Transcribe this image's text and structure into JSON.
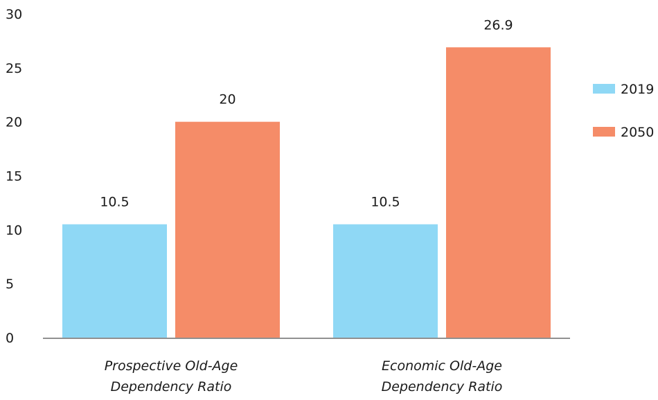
{
  "chart_data": {
    "type": "bar",
    "categories": [
      [
        "Prospective Old-Age",
        "Dependency Ratio"
      ],
      [
        "Economic Old-Age",
        "Dependency Ratio"
      ]
    ],
    "series": [
      {
        "name": "2019",
        "values": [
          10.5,
          10.5
        ],
        "color": "#8fd8f5"
      },
      {
        "name": "2050",
        "values": [
          20,
          26.9
        ],
        "color": "#f58c68"
      }
    ],
    "value_labels": [
      [
        "10.5",
        "10.5"
      ],
      [
        "20",
        "26.9"
      ]
    ],
    "yticks": [
      0,
      5,
      10,
      15,
      20,
      25,
      30
    ],
    "ylim": [
      0,
      30
    ],
    "grid": false,
    "legend": "right",
    "title": "",
    "xlabel": "",
    "ylabel": ""
  }
}
